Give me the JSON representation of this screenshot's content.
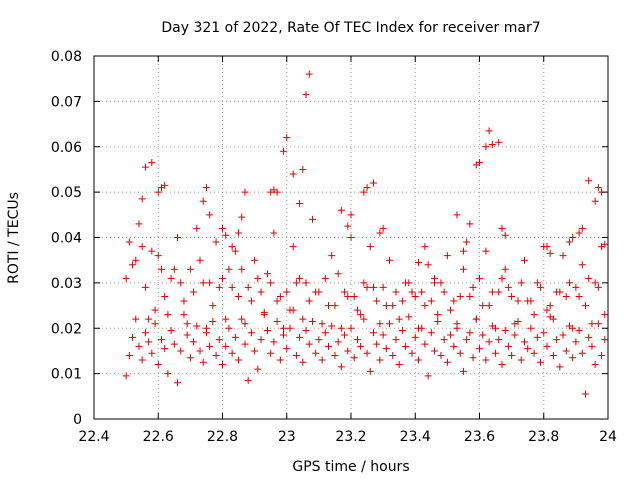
{
  "chart_data": {
    "type": "scatter",
    "title": "Day 321 of 2022, Rate Of TEC Index for receiver mar7",
    "xlabel": "GPS time / hours",
    "ylabel": "ROTI / TECUs",
    "xlim": [
      22.4,
      24.0
    ],
    "ylim": [
      0,
      0.08
    ],
    "xticks": [
      22.4,
      22.6,
      22.8,
      23.0,
      23.2,
      23.4,
      23.6,
      23.8,
      24.0
    ],
    "xtick_labels": [
      "22.4",
      "22.6",
      "22.8",
      "23",
      "23.2",
      "23.4",
      "23.6",
      "23.8",
      "24"
    ],
    "yticks": [
      0,
      0.01,
      0.02,
      0.03,
      0.04,
      0.05,
      0.06,
      0.07,
      0.08
    ],
    "ytick_labels": [
      "0",
      "0.01",
      "0.02",
      "0.03",
      "0.04",
      "0.05",
      "0.06",
      "0.07",
      "0.08"
    ],
    "grid": true,
    "marker": "+",
    "marker_color": "#e00000",
    "series": [
      {
        "name": "ROTI",
        "x": [
          22.5,
          22.51,
          22.52,
          22.53,
          22.54,
          22.55,
          22.56,
          22.57,
          22.58,
          22.59,
          22.6,
          22.61,
          22.62,
          22.63,
          22.64,
          22.65,
          22.66,
          22.67,
          22.68,
          22.69,
          22.7,
          22.71,
          22.72,
          22.73,
          22.74,
          22.75,
          22.76,
          22.77,
          22.78,
          22.79,
          22.8,
          22.81,
          22.82,
          22.83,
          22.84,
          22.85,
          22.86,
          22.87,
          22.88,
          22.89,
          22.9,
          22.91,
          22.92,
          22.93,
          22.94,
          22.95,
          22.96,
          22.97,
          22.98,
          22.99,
          23.0,
          23.01,
          23.02,
          23.03,
          23.04,
          23.05,
          23.06,
          23.07,
          23.08,
          23.09,
          23.1,
          23.11,
          23.12,
          23.13,
          23.14,
          23.15,
          23.16,
          23.17,
          23.18,
          23.19,
          23.2,
          23.21,
          23.22,
          23.23,
          23.24,
          23.25,
          23.26,
          23.27,
          23.28,
          23.29,
          23.3,
          23.31,
          23.32,
          23.33,
          23.34,
          23.35,
          23.36,
          23.37,
          23.38,
          23.39,
          23.4,
          23.41,
          23.42,
          23.43,
          23.44,
          23.45,
          23.46,
          23.47,
          23.48,
          23.49,
          23.5,
          23.51,
          23.52,
          23.53,
          23.54,
          23.55,
          23.56,
          23.57,
          23.58,
          23.59,
          23.6,
          23.61,
          23.62,
          23.63,
          23.64,
          23.65,
          23.66,
          23.67,
          23.68,
          23.69,
          23.7,
          23.71,
          23.72,
          23.73,
          23.74,
          23.75,
          23.76,
          23.77,
          23.78,
          23.79,
          23.8,
          23.81,
          23.82,
          23.83,
          23.84,
          23.85,
          23.86,
          23.87,
          23.88,
          23.89,
          23.9,
          23.91,
          23.92,
          23.93,
          23.94,
          23.95,
          23.96,
          23.97,
          23.98,
          23.99,
          22.5,
          22.53,
          22.56,
          22.59,
          22.62,
          22.65,
          22.68,
          22.71,
          22.74,
          22.77,
          22.8,
          22.83,
          22.86,
          22.89,
          22.92,
          22.95,
          22.98,
          23.01,
          23.04,
          23.07,
          23.1,
          23.13,
          23.16,
          23.19,
          23.22,
          23.25,
          23.28,
          23.31,
          23.34,
          23.37,
          23.4,
          23.43,
          23.46,
          23.49,
          23.52,
          23.55,
          23.58,
          23.61,
          23.64,
          23.67,
          23.7,
          23.73,
          23.76,
          23.79,
          23.82,
          23.85,
          23.88,
          23.91,
          23.94,
          23.97,
          22.51,
          22.55,
          22.6,
          22.66,
          22.72,
          22.78,
          22.84,
          22.9,
          22.96,
          23.02,
          23.08,
          23.14,
          23.2,
          23.26,
          23.32,
          23.38,
          23.44,
          23.5,
          23.56,
          23.62,
          23.68,
          23.74,
          23.8,
          23.86,
          23.92,
          23.98,
          22.52,
          22.58,
          22.64,
          22.7,
          22.76,
          22.82,
          22.88,
          22.94,
          23.0,
          23.06,
          23.12,
          23.18,
          23.24,
          23.3,
          23.36,
          23.42,
          23.48,
          23.54,
          23.6,
          23.66,
          23.72,
          23.78,
          23.84,
          23.9,
          23.96,
          22.57,
          22.63,
          22.69,
          22.75,
          22.81,
          22.87,
          22.93,
          22.99,
          23.05,
          23.11,
          23.17,
          23.23,
          23.29,
          23.35,
          23.41,
          23.47,
          23.53,
          23.59,
          23.65,
          23.71,
          23.77,
          23.83,
          23.89,
          23.95,
          22.54,
          22.61,
          22.67,
          22.73,
          22.79,
          22.85,
          22.91,
          22.97,
          23.03,
          23.09,
          23.15,
          23.21,
          23.27,
          23.33,
          23.39,
          23.45,
          23.51,
          23.57,
          23.63,
          23.69,
          23.75,
          23.81,
          23.87,
          23.93,
          23.99,
          22.55,
          22.56,
          22.58,
          22.6,
          22.61,
          22.62,
          22.96,
          22.99,
          23.0,
          23.02,
          23.04,
          23.05,
          23.06,
          23.07,
          23.24,
          23.25,
          23.27,
          23.59,
          23.6,
          23.62,
          23.63,
          23.64,
          23.66,
          23.94,
          23.96,
          23.97,
          23.98,
          23.99,
          22.74,
          22.75,
          22.76,
          22.85,
          22.86,
          22.87,
          22.95,
          22.97,
          23.17,
          23.19,
          23.2,
          23.53,
          23.55,
          23.57,
          23.91,
          23.92,
          22.8,
          22.81,
          22.83,
          23.29,
          23.3,
          23.41,
          23.43,
          23.46,
          23.67,
          23.68,
          23.81,
          23.82,
          23.88,
          23.89
        ],
        "y": [
          0.0095,
          0.014,
          0.018,
          0.022,
          0.016,
          0.013,
          0.019,
          0.017,
          0.0145,
          0.021,
          0.012,
          0.0175,
          0.0155,
          0.01,
          0.0195,
          0.0165,
          0.008,
          0.015,
          0.023,
          0.0185,
          0.0135,
          0.017,
          0.0205,
          0.015,
          0.0125,
          0.019,
          0.016,
          0.0215,
          0.014,
          0.0175,
          0.012,
          0.016,
          0.02,
          0.0145,
          0.018,
          0.013,
          0.022,
          0.0165,
          0.0085,
          0.019,
          0.015,
          0.011,
          0.0175,
          0.0235,
          0.0195,
          0.0145,
          0.017,
          0.0215,
          0.013,
          0.0185,
          0.0155,
          0.02,
          0.024,
          0.014,
          0.018,
          0.0125,
          0.0195,
          0.0165,
          0.0215,
          0.0145,
          0.0175,
          0.013,
          0.019,
          0.016,
          0.0205,
          0.014,
          0.017,
          0.0115,
          0.0185,
          0.015,
          0.02,
          0.0135,
          0.0175,
          0.016,
          0.022,
          0.0145,
          0.0105,
          0.019,
          0.0165,
          0.013,
          0.0185,
          0.0155,
          0.021,
          0.014,
          0.0175,
          0.012,
          0.0195,
          0.016,
          0.0225,
          0.0145,
          0.018,
          0.013,
          0.02,
          0.0165,
          0.0095,
          0.019,
          0.015,
          0.0215,
          0.014,
          0.0175,
          0.0125,
          0.0185,
          0.016,
          0.02,
          0.0145,
          0.0105,
          0.0175,
          0.019,
          0.0135,
          0.022,
          0.0155,
          0.0185,
          0.013,
          0.017,
          0.0205,
          0.0145,
          0.0175,
          0.012,
          0.0195,
          0.016,
          0.014,
          0.0185,
          0.0215,
          0.013,
          0.017,
          0.0155,
          0.02,
          0.0145,
          0.018,
          0.0125,
          0.019,
          0.016,
          0.0225,
          0.014,
          0.0175,
          0.0115,
          0.0185,
          0.015,
          0.0205,
          0.0135,
          0.017,
          0.0195,
          0.0145,
          0.0055,
          0.018,
          0.016,
          0.012,
          0.021,
          0.014,
          0.0175,
          0.031,
          0.035,
          0.029,
          0.024,
          0.027,
          0.033,
          0.026,
          0.028,
          0.03,
          0.025,
          0.031,
          0.029,
          0.033,
          0.026,
          0.028,
          0.03,
          0.027,
          0.024,
          0.031,
          0.026,
          0.028,
          0.025,
          0.032,
          0.027,
          0.024,
          0.029,
          0.026,
          0.025,
          0.028,
          0.03,
          0.027,
          0.025,
          0.031,
          0.028,
          0.026,
          0.033,
          0.029,
          0.025,
          0.028,
          0.031,
          0.027,
          0.03,
          0.026,
          0.029,
          0.025,
          0.028,
          0.03,
          0.027,
          0.031,
          0.029,
          0.039,
          0.038,
          0.036,
          0.04,
          0.042,
          0.039,
          0.037,
          0.035,
          0.041,
          0.038,
          0.044,
          0.036,
          0.04,
          0.038,
          0.035,
          0.03,
          0.034,
          0.036,
          0.039,
          0.037,
          0.033,
          0.035,
          0.038,
          0.036,
          0.034,
          0.038,
          0.034,
          0.037,
          0.031,
          0.033,
          0.03,
          0.033,
          0.029,
          0.032,
          0.028,
          0.03,
          0.031,
          0.028,
          0.03,
          0.029,
          0.026,
          0.028,
          0.03,
          0.027,
          0.031,
          0.028,
          0.026,
          0.03,
          0.028,
          0.029,
          0.03,
          0.022,
          0.023,
          0.021,
          0.02,
          0.022,
          0.021,
          0.023,
          0.02,
          0.022,
          0.021,
          0.02,
          0.023,
          0.021,
          0.022,
          0.02,
          0.023,
          0.021,
          0.022,
          0.02,
          0.021,
          0.023,
          0.022,
          0.02,
          0.021,
          0.043,
          0.033,
          0.03,
          0.035,
          0.029,
          0.027,
          0.031,
          0.026,
          0.03,
          0.028,
          0.025,
          0.027,
          0.029,
          0.025,
          0.028,
          0.026,
          0.024,
          0.027,
          0.025,
          0.029,
          0.026,
          0.024,
          0.027,
          0.025,
          0.023,
          0.0485,
          0.0555,
          0.0565,
          0.05,
          0.051,
          0.0515,
          0.0505,
          0.059,
          0.062,
          0.054,
          0.0475,
          0.055,
          0.0715,
          0.076,
          0.05,
          0.051,
          0.052,
          0.056,
          0.0565,
          0.06,
          0.0635,
          0.0605,
          0.061,
          0.0525,
          0.048,
          0.051,
          0.05,
          0.0385,
          0.048,
          0.051,
          0.045,
          0.041,
          0.0445,
          0.05,
          0.05,
          0.05,
          0.046,
          0.0425,
          0.045,
          0.045,
          0.037,
          0.043,
          0.041,
          0.042,
          0.042,
          0.0405,
          0.038,
          0.041,
          0.042,
          0.0345,
          0.038,
          0.03,
          0.042,
          0.0405,
          0.038,
          0.0365,
          0.039,
          0.04
        ]
      }
    ]
  }
}
